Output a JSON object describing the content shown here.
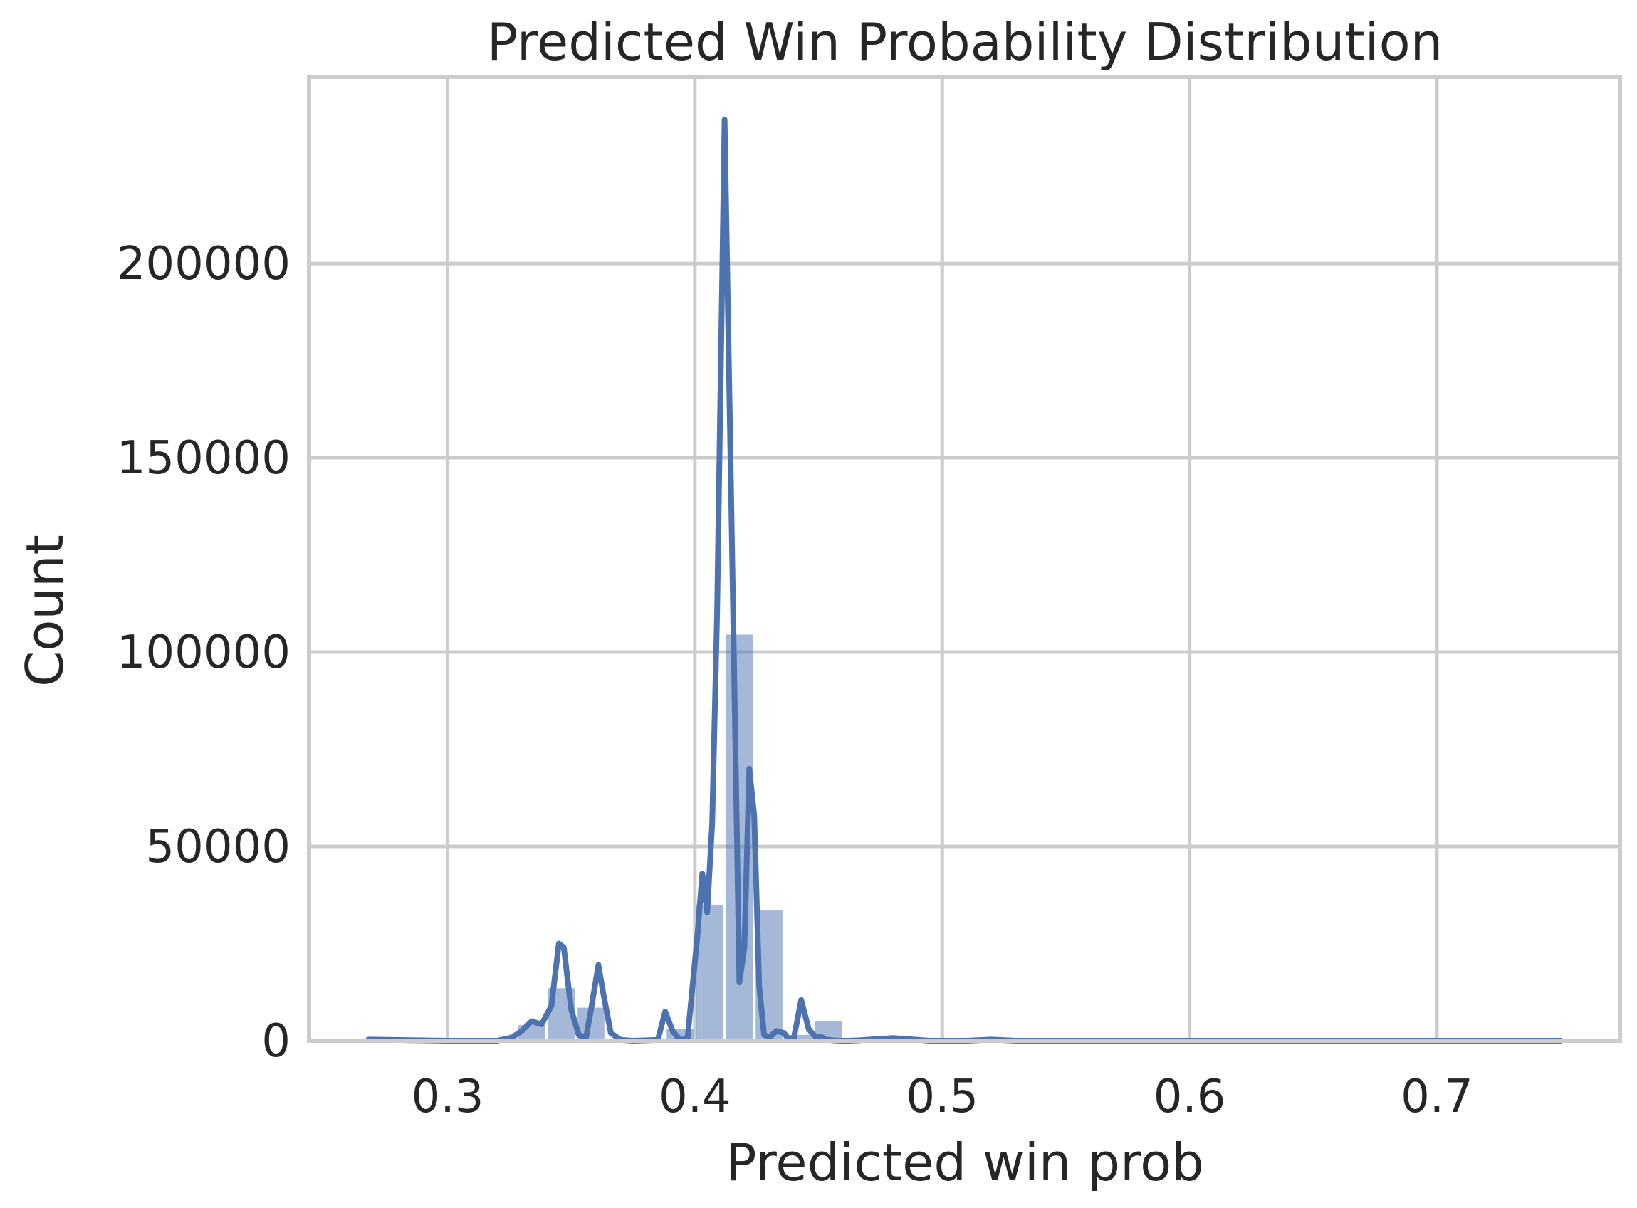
{
  "chart_data": {
    "type": "bar",
    "title": "Predicted Win Probability Distribution",
    "xlabel": "Predicted win prob",
    "ylabel": "Count",
    "xlim": [
      0.244,
      0.774
    ],
    "ylim": [
      0,
      248000
    ],
    "xticks": [
      0.3,
      0.4,
      0.5,
      0.6,
      0.7
    ],
    "xtick_labels": [
      "0.3",
      "0.4",
      "0.5",
      "0.6",
      "0.7"
    ],
    "yticks": [
      0,
      50000,
      100000,
      150000,
      200000
    ],
    "ytick_labels": [
      "0",
      "50000",
      "100000",
      "150000",
      "200000"
    ],
    "grid": true,
    "legend": "none",
    "colors": {
      "bar": "#4c72b0",
      "line": "#4c72b0",
      "grid": "#cccccc",
      "text": "#262626"
    },
    "histogram": {
      "bin_width": 0.012,
      "bins": [
        {
          "x0": 0.268,
          "x1": 0.28,
          "count": 0
        },
        {
          "x0": 0.28,
          "x1": 0.292,
          "count": 0
        },
        {
          "x0": 0.292,
          "x1": 0.304,
          "count": 0
        },
        {
          "x0": 0.304,
          "x1": 0.316,
          "count": 0
        },
        {
          "x0": 0.316,
          "x1": 0.328,
          "count": 300
        },
        {
          "x0": 0.328,
          "x1": 0.34,
          "count": 4000
        },
        {
          "x0": 0.34,
          "x1": 0.352,
          "count": 13500
        },
        {
          "x0": 0.352,
          "x1": 0.364,
          "count": 8500
        },
        {
          "x0": 0.364,
          "x1": 0.376,
          "count": 400
        },
        {
          "x0": 0.376,
          "x1": 0.388,
          "count": 0
        },
        {
          "x0": 0.388,
          "x1": 0.4,
          "count": 3000
        },
        {
          "x0": 0.4,
          "x1": 0.412,
          "count": 35000
        },
        {
          "x0": 0.412,
          "x1": 0.424,
          "count": 104500
        },
        {
          "x0": 0.424,
          "x1": 0.436,
          "count": 33500
        },
        {
          "x0": 0.436,
          "x1": 0.448,
          "count": 1500
        },
        {
          "x0": 0.448,
          "x1": 0.46,
          "count": 5000
        },
        {
          "x0": 0.46,
          "x1": 0.472,
          "count": 300
        },
        {
          "x0": 0.472,
          "x1": 0.484,
          "count": 0
        },
        {
          "x0": 0.484,
          "x1": 0.496,
          "count": 0
        },
        {
          "x0": 0.496,
          "x1": 0.508,
          "count": 0
        },
        {
          "x0": 0.508,
          "x1": 0.52,
          "count": 0
        },
        {
          "x0": 0.52,
          "x1": 0.532,
          "count": 0
        },
        {
          "x0": 0.532,
          "x1": 0.544,
          "count": 0
        },
        {
          "x0": 0.544,
          "x1": 0.556,
          "count": 0
        },
        {
          "x0": 0.556,
          "x1": 0.568,
          "count": 0
        },
        {
          "x0": 0.568,
          "x1": 0.58,
          "count": 0
        },
        {
          "x0": 0.58,
          "x1": 0.592,
          "count": 0
        },
        {
          "x0": 0.592,
          "x1": 0.604,
          "count": 0
        },
        {
          "x0": 0.604,
          "x1": 0.616,
          "count": 0
        },
        {
          "x0": 0.616,
          "x1": 0.628,
          "count": 0
        },
        {
          "x0": 0.628,
          "x1": 0.64,
          "count": 0
        },
        {
          "x0": 0.64,
          "x1": 0.652,
          "count": 0
        },
        {
          "x0": 0.652,
          "x1": 0.664,
          "count": 0
        },
        {
          "x0": 0.664,
          "x1": 0.676,
          "count": 0
        },
        {
          "x0": 0.676,
          "x1": 0.688,
          "count": 0
        },
        {
          "x0": 0.688,
          "x1": 0.7,
          "count": 0
        },
        {
          "x0": 0.7,
          "x1": 0.712,
          "count": 0
        },
        {
          "x0": 0.712,
          "x1": 0.724,
          "count": 0
        },
        {
          "x0": 0.724,
          "x1": 0.736,
          "count": 0
        },
        {
          "x0": 0.736,
          "x1": 0.75,
          "count": 0
        }
      ]
    },
    "kde_line": {
      "x": [
        0.268,
        0.3,
        0.32,
        0.326,
        0.33,
        0.334,
        0.338,
        0.342,
        0.345,
        0.347,
        0.35,
        0.353,
        0.356,
        0.358,
        0.361,
        0.363,
        0.366,
        0.37,
        0.375,
        0.385,
        0.388,
        0.391,
        0.394,
        0.397,
        0.401,
        0.403,
        0.405,
        0.407,
        0.409,
        0.412,
        0.414,
        0.416,
        0.418,
        0.42,
        0.422,
        0.424,
        0.426,
        0.428,
        0.43,
        0.433,
        0.436,
        0.438,
        0.44,
        0.443,
        0.446,
        0.449,
        0.451,
        0.453,
        0.456,
        0.459,
        0.462,
        0.466,
        0.48,
        0.495,
        0.5,
        0.51,
        0.52,
        0.53,
        0.6,
        0.7,
        0.75
      ],
      "y": [
        300,
        0,
        0,
        800,
        2500,
        5000,
        4200,
        9000,
        25000,
        24000,
        8000,
        1500,
        800,
        8000,
        19500,
        12000,
        2000,
        200,
        0,
        200,
        7500,
        2500,
        200,
        500,
        27000,
        43000,
        33000,
        56000,
        110000,
        237000,
        165000,
        90000,
        15000,
        24000,
        70000,
        58000,
        14000,
        1500,
        800,
        2500,
        2000,
        300,
        600,
        10500,
        3000,
        800,
        1000,
        300,
        100,
        0,
        0,
        100,
        700,
        0,
        0,
        0,
        300,
        0,
        0,
        0,
        0
      ]
    }
  }
}
